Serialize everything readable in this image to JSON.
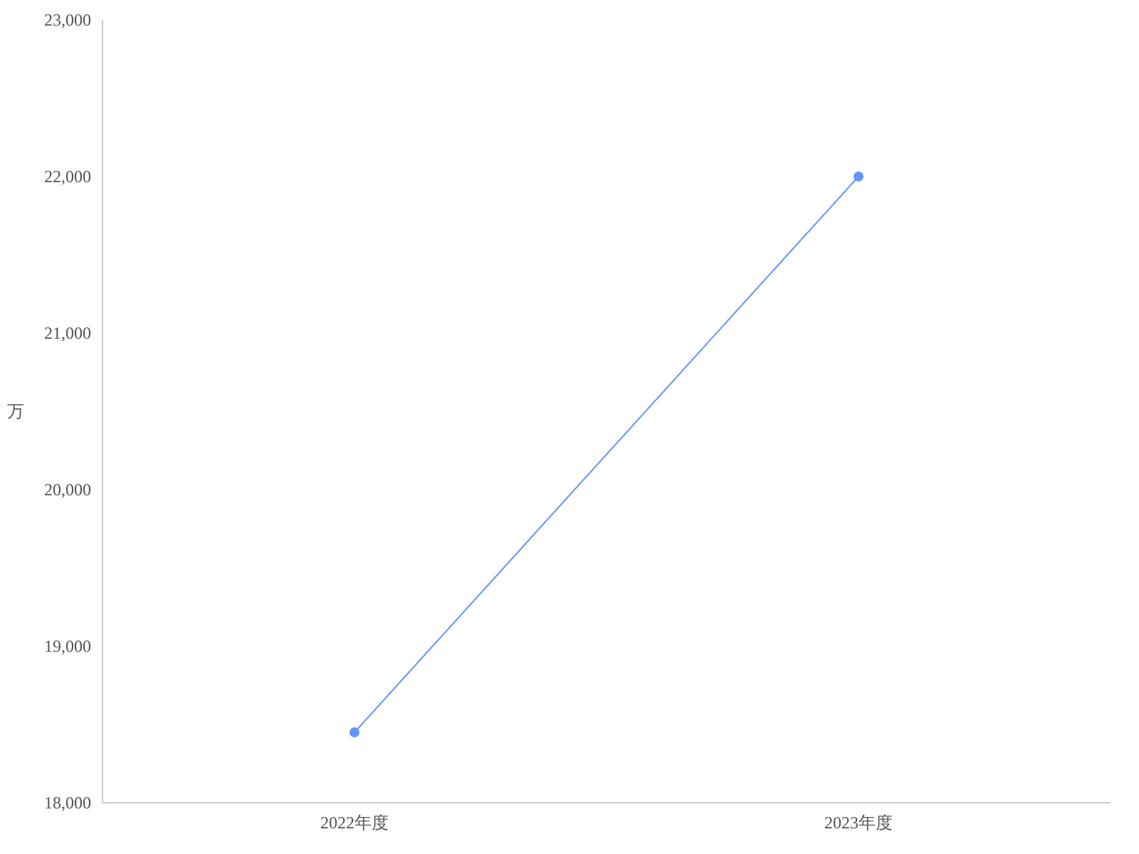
{
  "chart_data": {
    "type": "line",
    "ylabel": "万",
    "categories": [
      "2022年度",
      "2023年度"
    ],
    "series": [
      {
        "color": "#6394f9",
        "values": [
          18450,
          22000
        ]
      }
    ],
    "ylim": [
      18000,
      23000
    ],
    "yticks": [
      {
        "value": 18000,
        "label": "18,000"
      },
      {
        "value": 19000,
        "label": "19,000"
      },
      {
        "value": 20000,
        "label": "20,000"
      },
      {
        "value": 21000,
        "label": "21,000"
      },
      {
        "value": 22000,
        "label": "22,000"
      },
      {
        "value": 23000,
        "label": "23,000"
      }
    ],
    "marker": "circle"
  }
}
